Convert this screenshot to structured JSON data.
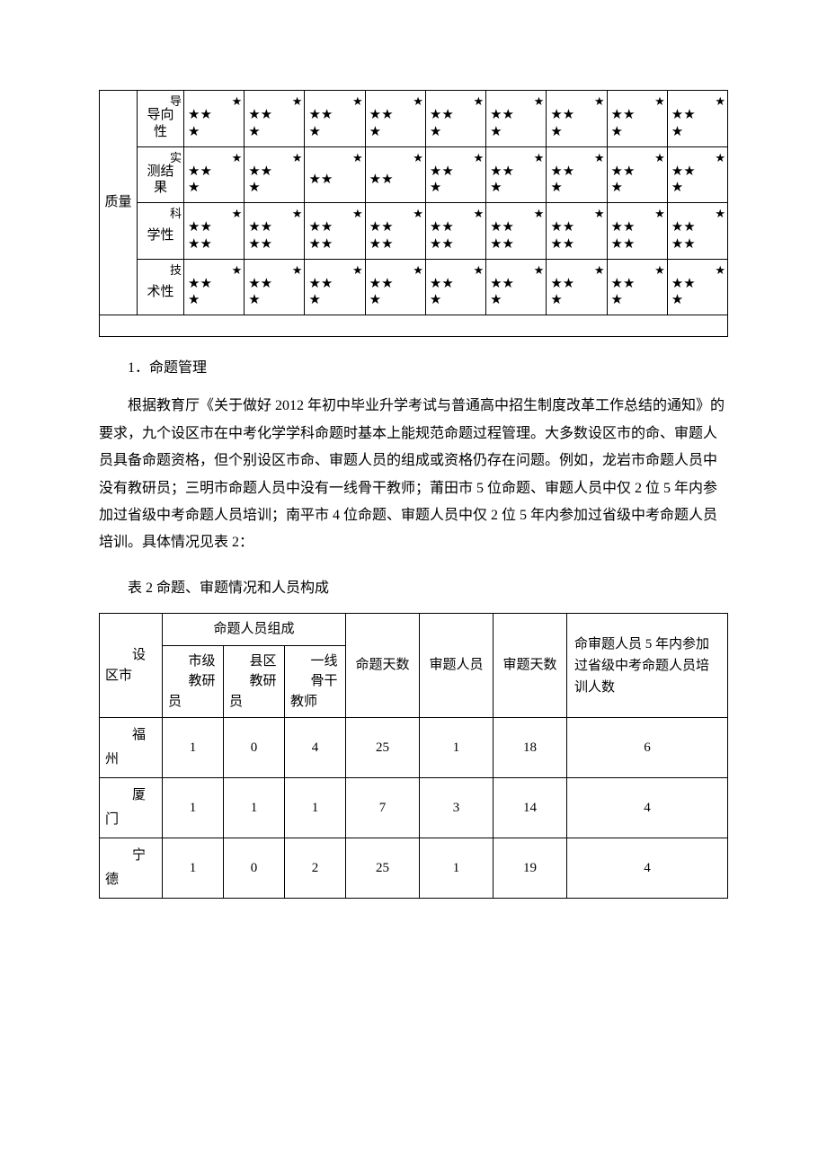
{
  "starTable": {
    "leftLabel": "质量",
    "star": "★",
    "rows": [
      {
        "header": "导向性",
        "cornerHeader": "导",
        "cells": [
          "★★★",
          "★★★",
          "★★★",
          "★★★",
          "★★★",
          "★★★",
          "★★★",
          "★★★",
          "★★★"
        ]
      },
      {
        "header": "测结果",
        "cornerHeader": "实",
        "cells": [
          "★★★",
          "★★★",
          "★★",
          "★★",
          "★★★",
          "★★★",
          "★★★",
          "★★★",
          "★★★"
        ]
      },
      {
        "header": "学性",
        "cornerHeader": "科",
        "cells": [
          "★★★★",
          "★★★★",
          "★★★★",
          "★★★★",
          "★★★★",
          "★★★★",
          "★★★★",
          "★★★★",
          "★★★★"
        ]
      },
      {
        "header": "术性",
        "cornerHeader": "技",
        "cells": [
          "★★★",
          "★★★",
          "★★★",
          "★★★",
          "★★★",
          "★★★",
          "★★★",
          "★★★",
          "★★★"
        ]
      }
    ]
  },
  "section1_heading": "1．命题管理",
  "section1_body": "根据教育厅《关于做好 2012 年初中毕业升学考试与普通高中招生制度改革工作总结的通知》的要求，九个设区市在中考化学学科命题时基本上能规范命题过程管理。大多数设区市的命、审题人员具备命题资格，但个别设区市命、审题人员的组成或资格仍存在问题。例如，龙岩市命题人员中没有教研员；三明市命题人员中没有一线骨干教师；莆田市 5 位命题、审题人员中仅 2 位 5 年内参加过省级中考命题人员培训；南平市 4 位命题、审题人员中仅 2 位 5 年内参加过省级中考命题人员培训。具体情况见表 2：",
  "table2_caption": "表 2 命题、审题情况和人员构成",
  "table2": {
    "headers": {
      "groupA": "命题人员组成",
      "city": "设区市",
      "a1_top": "市级",
      "a1_bot": "教研员",
      "a2_top": "县区",
      "a2_bot": "教研员",
      "a3_top": "一线",
      "a3_bot": "骨干教师",
      "b1": "命题天数",
      "b2": "审题人员",
      "b3": "审题天数",
      "b4": "命审题人员 5 年内参加过省级中考命题人员培训人数"
    },
    "rows": [
      {
        "city": "福州",
        "a1": "1",
        "a2": "0",
        "a3": "4",
        "b1": "25",
        "b2": "1",
        "b3": "18",
        "b4": "6"
      },
      {
        "city": "厦门",
        "a1": "1",
        "a2": "1",
        "a3": "1",
        "b1": "7",
        "b2": "3",
        "b3": "14",
        "b4": "4"
      },
      {
        "city": "宁德",
        "a1": "1",
        "a2": "0",
        "a3": "2",
        "b1": "25",
        "b2": "1",
        "b3": "19",
        "b4": "4"
      }
    ]
  }
}
